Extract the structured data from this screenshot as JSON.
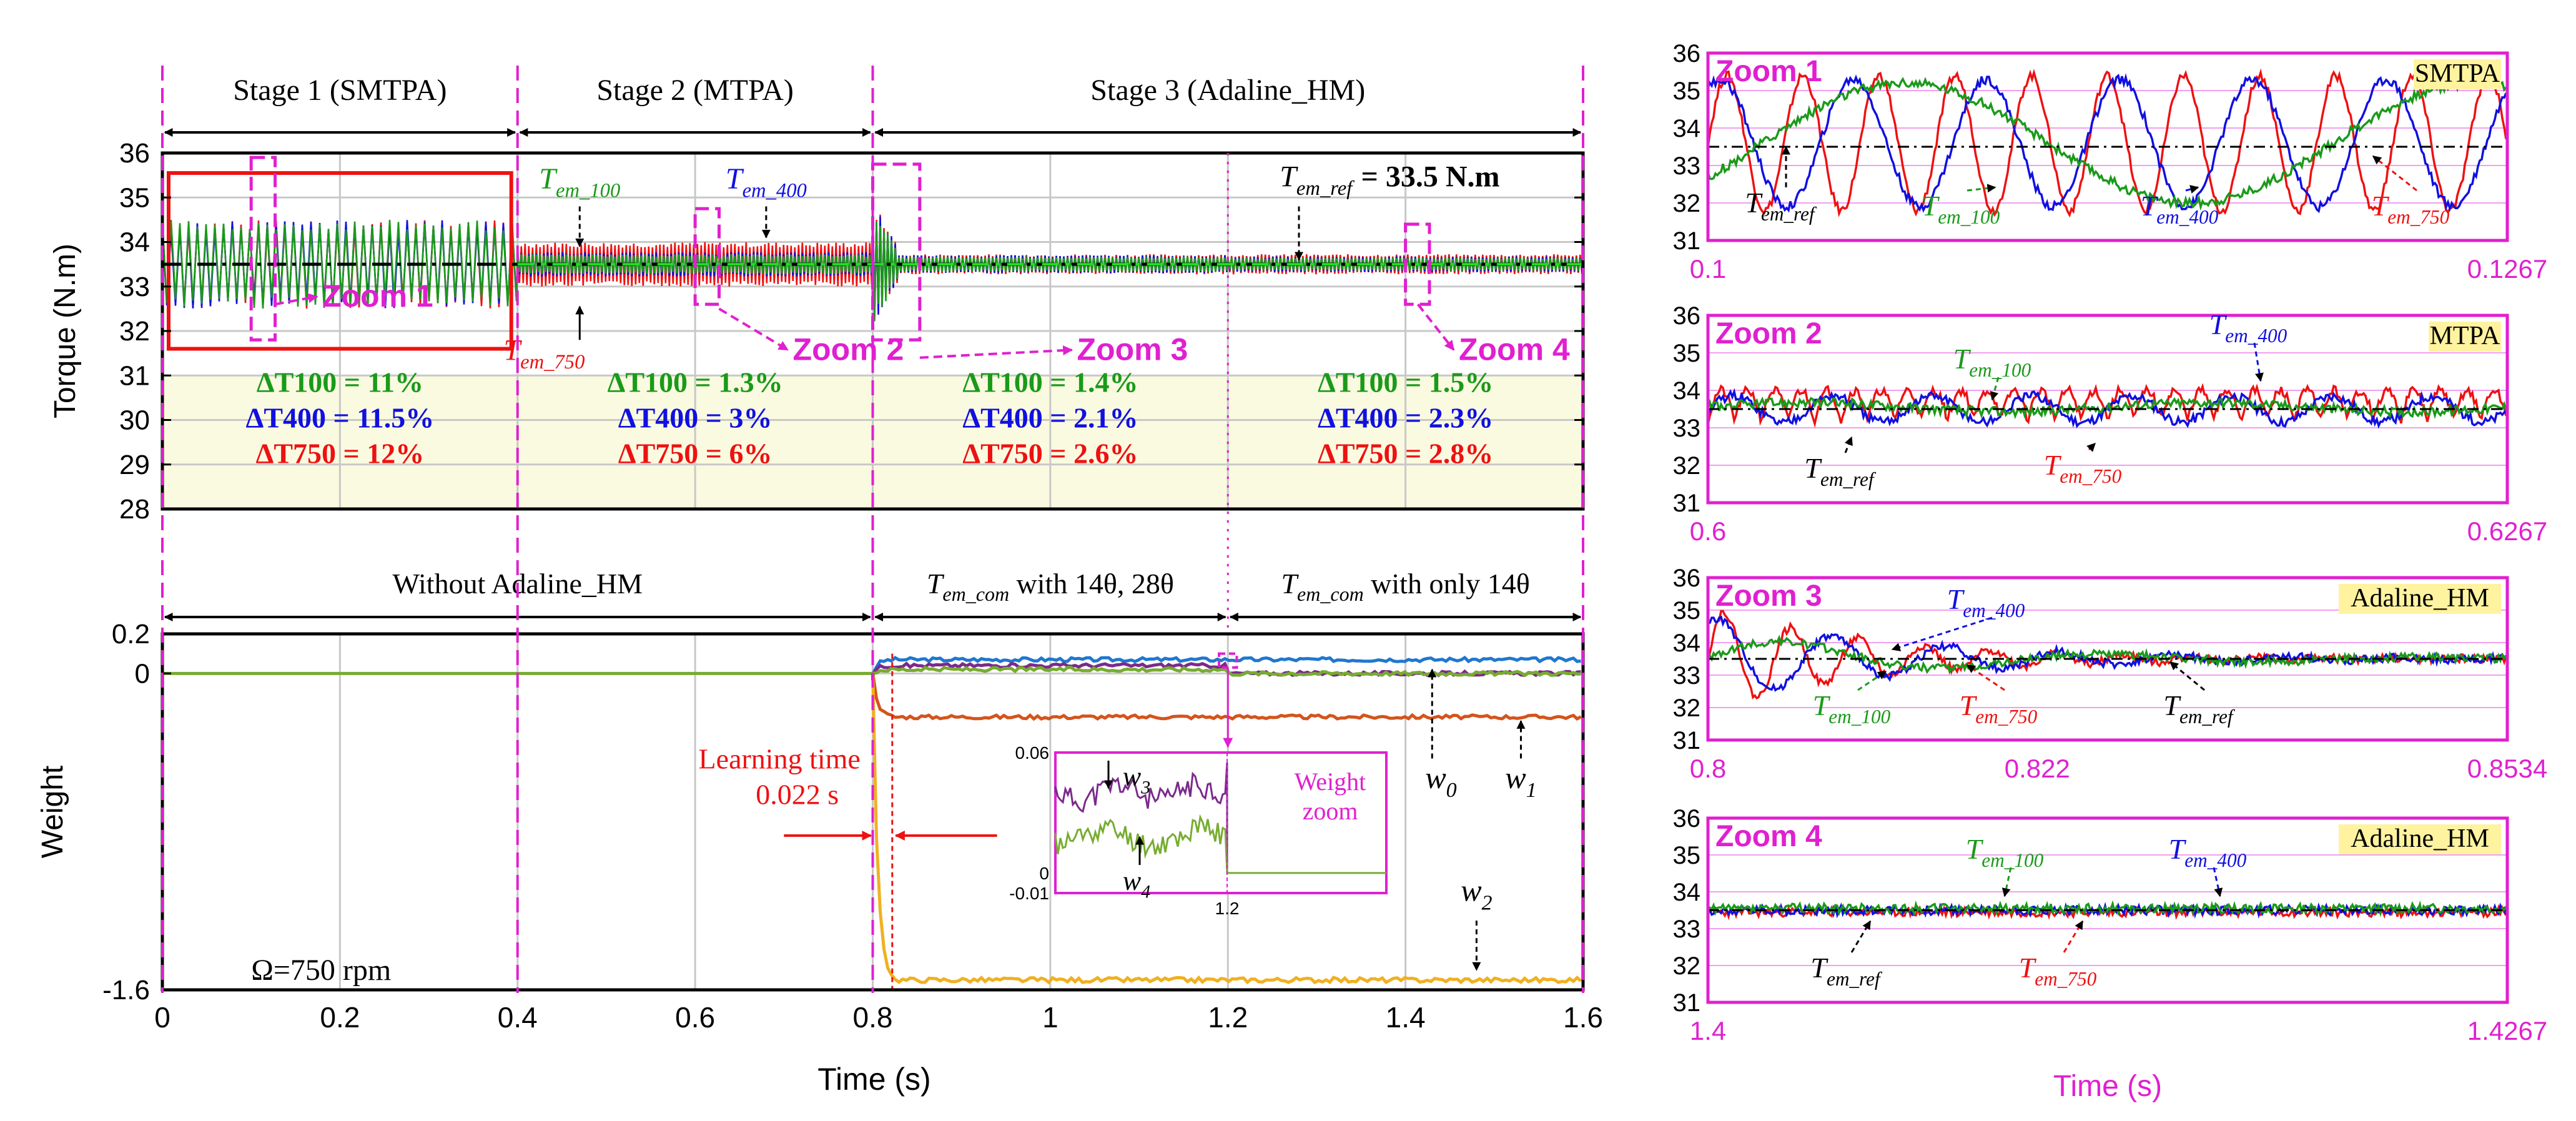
{
  "chart_data": [
    {
      "id": "main_torque",
      "type": "line",
      "ylabel": "Torque (N.m)",
      "xlim": [
        0,
        1.6
      ],
      "ylim": [
        28,
        36
      ],
      "yticks": [
        "36",
        "35",
        "34",
        "33",
        "32",
        "31",
        "30",
        "29",
        "28"
      ],
      "stages": [
        {
          "label": "Stage 1 (SMTPA)",
          "x": [
            0,
            0.4
          ]
        },
        {
          "label": "Stage 2 (MTPA)",
          "x": [
            0.4,
            0.8
          ]
        },
        {
          "label": "Stage 3 (Adaline_HM)",
          "x": [
            0.8,
            1.6
          ]
        }
      ],
      "reference_label": "T_em_ref = 33.5 N.m",
      "reference_value": 33.5,
      "series": [
        {
          "name": "T_em_100",
          "color": "#1a9a1a",
          "ripple": [
            2.0,
            0.45,
            0.35,
            0.3
          ]
        },
        {
          "name": "T_em_400",
          "color": "#1010e0",
          "ripple": [
            2.0,
            0.55,
            0.4,
            0.35
          ]
        },
        {
          "name": "T_em_750",
          "color": "#ee1111",
          "ripple": [
            2.0,
            1.0,
            0.45,
            0.45
          ]
        }
      ],
      "segments": [
        0,
        0.4,
        0.8,
        1.2,
        1.6
      ],
      "ripple_table": [
        {
          "dt100": "ΔT100 = 11%",
          "dt400": "ΔT400 = 11.5%",
          "dt750": "ΔT750 = 12%"
        },
        {
          "dt100": "ΔT100 = 1.3%",
          "dt400": "ΔT400 = 3%",
          "dt750": "ΔT750 = 6%"
        },
        {
          "dt100": "ΔT100 = 1.4%",
          "dt400": "ΔT400 = 2.1%",
          "dt750": "ΔT750 = 2.6%"
        },
        {
          "dt100": "ΔT100 = 1.5%",
          "dt400": "ΔT400 = 2.3%",
          "dt750": "ΔT750 = 2.8%"
        }
      ],
      "zoom_labels": [
        "Zoom 1",
        "Zoom 2",
        "Zoom 3",
        "Zoom 4"
      ],
      "annotations": {
        "t100": "T_em_100",
        "t400": "T_em_400",
        "t750": "T_em_750"
      }
    },
    {
      "id": "main_weight",
      "type": "line",
      "xlabel": "Time (s)",
      "ylabel": "Weight",
      "xlim": [
        0,
        1.6
      ],
      "ylim": [
        -1.6,
        0.2
      ],
      "xticks": [
        "0",
        "0.2",
        "0.4",
        "0.6",
        "0.8",
        "1",
        "1.2",
        "1.4",
        "1.6"
      ],
      "yticks": [
        "0.2",
        "0",
        "-1.6"
      ],
      "phase_labels": [
        "Without Adaline_HM",
        "T_em_com with 14θ, 28θ",
        "T_em_com with only 14θ"
      ],
      "speed_label": "Ω=750 rpm",
      "learning_time_label": "Learning time",
      "learning_time_value": "0.022 s",
      "weights": [
        {
          "name": "w0",
          "color": "#1f77d0",
          "final": 0.07
        },
        {
          "name": "w1",
          "color": "#d4541c",
          "final": -0.22
        },
        {
          "name": "w2",
          "color": "#f0b020",
          "final": -1.55
        },
        {
          "name": "w3",
          "color": "#7b2a8c",
          "final": 0.04
        },
        {
          "name": "w4",
          "color": "#77ac30",
          "final": 0.02
        }
      ],
      "inset": {
        "title": "Weight zoom",
        "yticks": [
          "0.06",
          "0",
          "-0.01"
        ],
        "xtick": "1.2",
        "labels": [
          "w3",
          "w4"
        ]
      }
    },
    {
      "id": "zoom1",
      "title": "Zoom 1",
      "tag": "SMTPA",
      "type": "line",
      "xlim": [
        0.1,
        0.1267
      ],
      "xticks": [
        "0.1",
        "0.1267"
      ],
      "ylim": [
        31,
        36
      ],
      "yticks": [
        "36",
        "35",
        "34",
        "33",
        "32",
        "31"
      ],
      "labels": [
        "T_em_ref",
        "T_em_100",
        "T_em_400",
        "T_em_750"
      ]
    },
    {
      "id": "zoom2",
      "title": "Zoom 2",
      "tag": "MTPA",
      "type": "line",
      "xlim": [
        0.6,
        0.6267
      ],
      "xticks": [
        "0.6",
        "0.6267"
      ],
      "ylim": [
        31,
        36
      ],
      "yticks": [
        "36",
        "35",
        "34",
        "33",
        "32",
        "31"
      ],
      "labels": [
        "T_em_100",
        "T_em_400",
        "T_em_ref",
        "T_em_750"
      ]
    },
    {
      "id": "zoom3",
      "title": "Zoom 3",
      "tag": "Adaline_HM",
      "type": "line",
      "xlim": [
        0.8,
        0.8534
      ],
      "xticks": [
        "0.8",
        "0.822",
        "0.8534"
      ],
      "ylim": [
        31,
        36
      ],
      "yticks": [
        "36",
        "35",
        "34",
        "33",
        "32",
        "31"
      ],
      "labels": [
        "T_em_400",
        "T_em_100",
        "T_em_750",
        "T_em_ref"
      ]
    },
    {
      "id": "zoom4",
      "title": "Zoom 4",
      "tag": "Adaline_HM",
      "type": "line",
      "xlim": [
        1.4,
        1.4267
      ],
      "xticks": [
        "1.4",
        "1.4267"
      ],
      "ylim": [
        31,
        36
      ],
      "yticks": [
        "36",
        "35",
        "34",
        "33",
        "32",
        "31"
      ],
      "xlabel": "Time (s)",
      "labels": [
        "T_em_100",
        "T_em_400",
        "T_em_ref",
        "T_em_750"
      ]
    }
  ],
  "colors": {
    "green": "#1a9a1a",
    "blue": "#1010e0",
    "red": "#ee1111",
    "magenta": "#e020d0",
    "panel_fill": "#fafae0",
    "tag_fill": "#fff3a0"
  }
}
